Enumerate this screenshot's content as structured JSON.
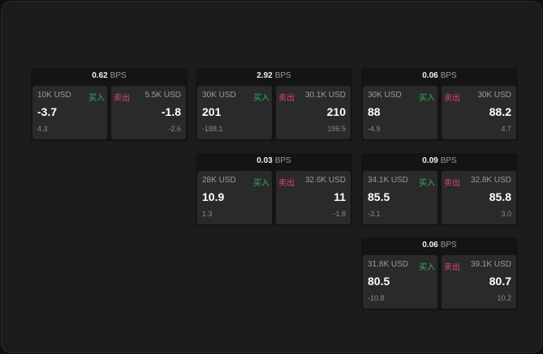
{
  "colors": {
    "buy": "#2fae5f",
    "sell": "#e0456e"
  },
  "unit": "BPS",
  "buy_label": "买入",
  "sell_label": "卖出",
  "cards": [
    {
      "spread": "0.62",
      "buy": {
        "qty": "10K USD",
        "price": "-3.7",
        "change": "4.3"
      },
      "sell": {
        "qty": "5.5K USD",
        "price": "-1.8",
        "change": "-2.6"
      }
    },
    {
      "spread": "2.92",
      "buy": {
        "qty": "30K USD",
        "price": "201",
        "change": "-188.1"
      },
      "sell": {
        "qty": "30.1K USD",
        "price": "210",
        "change": "196.5"
      }
    },
    {
      "spread": "0.06",
      "buy": {
        "qty": "30K USD",
        "price": "88",
        "change": "-4.9"
      },
      "sell": {
        "qty": "30K USD",
        "price": "88.2",
        "change": "4.7"
      }
    },
    {
      "spread": "0.03",
      "buy": {
        "qty": "28K USD",
        "price": "10.9",
        "change": "1.3"
      },
      "sell": {
        "qty": "32.6K USD",
        "price": "11",
        "change": "-1.8"
      }
    },
    {
      "spread": "0.09",
      "buy": {
        "qty": "34.1K USD",
        "price": "85.5",
        "change": "-3.1"
      },
      "sell": {
        "qty": "32.8K USD",
        "price": "85.8",
        "change": "3.0"
      }
    },
    {
      "spread": "0.06",
      "buy": {
        "qty": "31.8K USD",
        "price": "80.5",
        "change": "-10.8"
      },
      "sell": {
        "qty": "39.1K USD",
        "price": "80.7",
        "change": "10.2"
      }
    }
  ]
}
